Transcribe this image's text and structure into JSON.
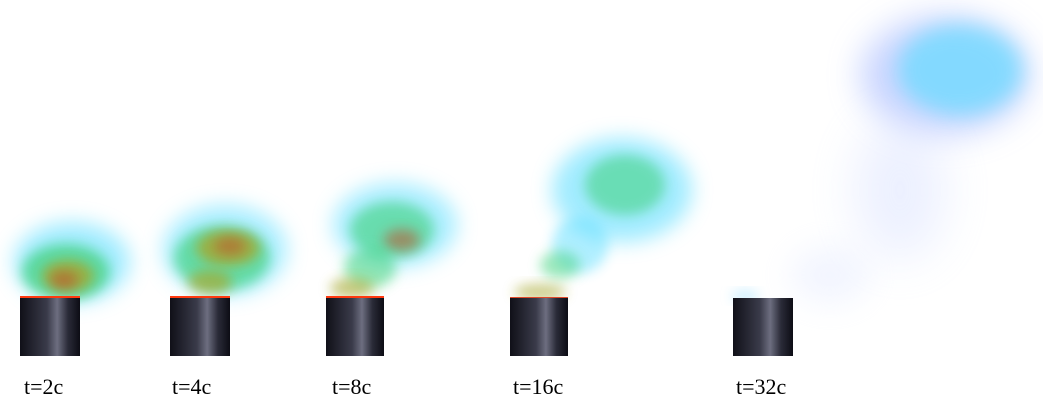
{
  "frames": [
    {
      "label": "t=2c"
    },
    {
      "label": "t=4c"
    },
    {
      "label": "t=8c"
    },
    {
      "label": "t=16c"
    },
    {
      "label": "t=32c"
    }
  ],
  "colors": {
    "background": "#ffffff",
    "chimney_dark": "#15151f",
    "chimney_light": "#6d6e80",
    "plume_hot": "#c0502a",
    "plume_warm": "#a6a82e",
    "plume_mid": "#3ed27a",
    "plume_cool": "#55dcff",
    "plume_cold": "#9fb4ff",
    "vent_glow": "#ff3a10"
  }
}
